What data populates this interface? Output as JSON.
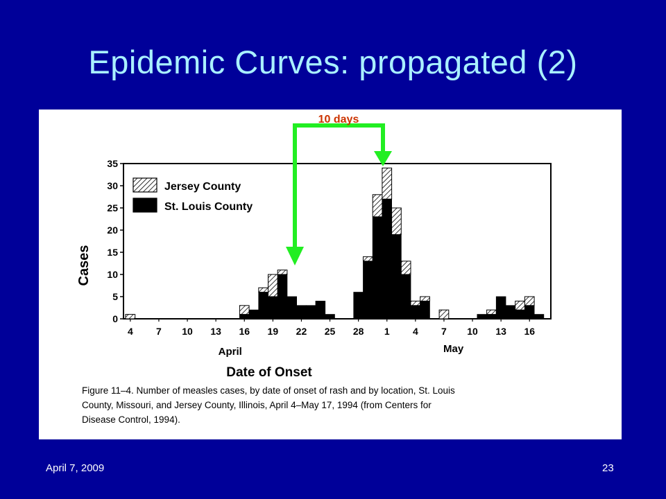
{
  "slide": {
    "title": "Epidemic Curves: propagated (2)",
    "footer_date": "April 7, 2009",
    "page_number": "23"
  },
  "annotation": {
    "label": "10 days",
    "label_color": "#cc3300",
    "arrow_color": "#22ee22"
  },
  "colors": {
    "background": "#000099",
    "title": "#a9f0ff",
    "bars": "#000000",
    "panel": "#ffffff"
  },
  "chart_data": {
    "type": "bar",
    "stacked": true,
    "ylabel": "Cases",
    "xlabel": "Date of Onset",
    "ylim": [
      0,
      35
    ],
    "yticks": [
      "0",
      "5",
      "10",
      "15",
      "20",
      "25",
      "30",
      "35"
    ],
    "xticks": [
      "4",
      "7",
      "10",
      "13",
      "16",
      "19",
      "22",
      "25",
      "28",
      "1",
      "4",
      "7",
      "10",
      "13",
      "16"
    ],
    "month_labels": [
      "April",
      "May"
    ],
    "legend_position": "top-left",
    "grid": false,
    "categories": [
      "Apr 4",
      "Apr 5",
      "Apr 6",
      "Apr 7",
      "Apr 8",
      "Apr 9",
      "Apr 10",
      "Apr 11",
      "Apr 12",
      "Apr 13",
      "Apr 14",
      "Apr 15",
      "Apr 16",
      "Apr 17",
      "Apr 18",
      "Apr 19",
      "Apr 20",
      "Apr 21",
      "Apr 22",
      "Apr 23",
      "Apr 24",
      "Apr 25",
      "Apr 26",
      "Apr 27",
      "Apr 28",
      "Apr 29",
      "Apr 30",
      "May 1",
      "May 2",
      "May 3",
      "May 4",
      "May 5",
      "May 6",
      "May 7",
      "May 8",
      "May 9",
      "May 10",
      "May 11",
      "May 12",
      "May 13",
      "May 14",
      "May 15",
      "May 16",
      "May 17"
    ],
    "series": [
      {
        "name": "St. Louis County",
        "pattern": "solid",
        "values": [
          0,
          0,
          0,
          0,
          0,
          0,
          0,
          0,
          0,
          0,
          0,
          0,
          1,
          2,
          6,
          5,
          10,
          5,
          3,
          3,
          4,
          1,
          0,
          0,
          6,
          13,
          23,
          27,
          19,
          10,
          3,
          4,
          0,
          0,
          0,
          0,
          0,
          1,
          1,
          5,
          3,
          2,
          3,
          1
        ]
      },
      {
        "name": "Jersey County",
        "pattern": "hatched",
        "values": [
          1,
          0,
          0,
          0,
          0,
          0,
          0,
          0,
          0,
          0,
          0,
          0,
          2,
          0,
          1,
          5,
          1,
          0,
          0,
          0,
          0,
          0,
          0,
          0,
          0,
          1,
          5,
          7,
          6,
          3,
          1,
          1,
          0,
          2,
          0,
          0,
          0,
          0,
          1,
          0,
          0,
          2,
          2,
          0
        ]
      }
    ],
    "caption": "Figure 11–4. Number of measles cases, by date of onset of rash and by location, St. Louis County, Missouri, and Jersey County, Illinois, April 4–May 17, 1994 (from Centers for Disease Control, 1994)."
  }
}
